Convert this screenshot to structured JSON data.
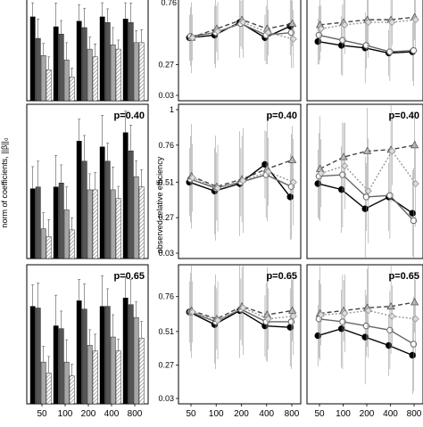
{
  "figure": {
    "left_ylabel": "norm of coefficients, ||β||₀",
    "mid_ylabel": "observed relative efficiency",
    "top_partial_label": "0.76",
    "x_ticks": [
      "50",
      "100",
      "200",
      "400",
      "800"
    ]
  },
  "colors": {
    "black": "#000000",
    "dark_gray": "#555555",
    "light_gray": "#a8a8a8",
    "hatch": "#777777",
    "axis": "#000000",
    "errorbar": "#555555"
  },
  "chart_data": [
    {
      "type": "bar",
      "panel": "bar-row1",
      "categories": [
        "50",
        "100",
        "200",
        "400",
        "800"
      ],
      "series": [
        {
          "values": [
            1.95,
            1.72,
            1.85,
            1.95,
            1.9
          ]
        },
        {
          "values": [
            1.45,
            1.55,
            1.7,
            1.82,
            1.82
          ]
        },
        {
          "values": [
            1.05,
            0.95,
            1.2,
            1.3,
            1.35
          ]
        },
        {
          "values": [
            0.72,
            0.55,
            1.02,
            1.2,
            1.35
          ]
        }
      ],
      "ylim": [
        0,
        2.3
      ]
    },
    {
      "type": "bar",
      "panel": "bar-row2",
      "annotation": "p=0.40",
      "categories": [
        "50",
        "100",
        "200",
        "400",
        "800"
      ],
      "series": [
        {
          "values": [
            1.22,
            1.25,
            2.05,
            1.95,
            2.2
          ]
        },
        {
          "values": [
            1.25,
            1.32,
            1.7,
            1.7,
            1.88
          ]
        },
        {
          "values": [
            0.52,
            0.85,
            1.2,
            1.2,
            1.43
          ]
        },
        {
          "values": [
            0.38,
            0.5,
            1.2,
            1.05,
            1.25
          ]
        }
      ],
      "ylim": [
        0,
        2.6
      ]
    },
    {
      "type": "bar",
      "panel": "bar-row3",
      "annotation": "p=0.65",
      "categories": [
        "50",
        "100",
        "200",
        "400",
        "800"
      ],
      "series": [
        {
          "values": [
            1.75,
            1.4,
            1.85,
            1.75,
            1.9
          ]
        },
        {
          "values": [
            1.72,
            1.35,
            1.7,
            1.75,
            1.78
          ]
        },
        {
          "values": [
            0.75,
            0.75,
            1.05,
            1.2,
            1.55
          ]
        },
        {
          "values": [
            0.55,
            0.5,
            0.95,
            0.95,
            1.18
          ]
        }
      ],
      "ylim": [
        0,
        2.4
      ]
    },
    {
      "type": "line",
      "panel": "eff-col1-row1",
      "x": [
        "50",
        "100",
        "200",
        "400",
        "800"
      ],
      "yticks": [
        "0.27",
        "0.03"
      ],
      "series": [
        {
          "marker": "circle-filled",
          "values": [
            0.48,
            0.5,
            0.6,
            0.48,
            0.57
          ]
        },
        {
          "marker": "circle-open",
          "values": [
            0.49,
            0.52,
            0.59,
            0.5,
            0.52
          ]
        },
        {
          "marker": "triangle",
          "values": [
            0.48,
            0.55,
            0.62,
            0.55,
            0.59
          ]
        },
        {
          "marker": "diamond",
          "values": [
            0.48,
            0.53,
            0.6,
            0.52,
            0.47
          ]
        }
      ],
      "ylim": [
        0.03,
        0.76
      ]
    },
    {
      "type": "line",
      "panel": "eff-col1-row2",
      "annotation": "p=0.40",
      "x": [
        "50",
        "100",
        "200",
        "400",
        "800"
      ],
      "yticks": [
        "1",
        "0.76",
        "0.51",
        "0.27",
        "0.03"
      ],
      "series": [
        {
          "marker": "circle-filled",
          "values": [
            0.51,
            0.45,
            0.5,
            0.63,
            0.41
          ]
        },
        {
          "marker": "circle-open",
          "values": [
            0.53,
            0.47,
            0.51,
            0.56,
            0.48
          ]
        },
        {
          "marker": "triangle",
          "values": [
            0.55,
            0.48,
            0.53,
            0.6,
            0.66
          ]
        },
        {
          "marker": "diamond",
          "values": [
            0.54,
            0.47,
            0.52,
            0.58,
            0.51
          ]
        }
      ],
      "ylim": [
        0.03,
        1
      ]
    },
    {
      "type": "line",
      "panel": "eff-col1-row3",
      "annotation": "p=0.65",
      "x": [
        "50",
        "100",
        "200",
        "400",
        "800"
      ],
      "yticks": [
        "0.76",
        "0.51",
        "0.27",
        "0.03"
      ],
      "series": [
        {
          "marker": "circle-filled",
          "values": [
            0.65,
            0.56,
            0.66,
            0.55,
            0.54
          ]
        },
        {
          "marker": "circle-open",
          "values": [
            0.65,
            0.58,
            0.67,
            0.58,
            0.58
          ]
        },
        {
          "marker": "triangle",
          "values": [
            0.66,
            0.6,
            0.69,
            0.63,
            0.66
          ]
        },
        {
          "marker": "diamond",
          "values": [
            0.65,
            0.59,
            0.68,
            0.6,
            0.62
          ]
        }
      ],
      "ylim": [
        0.03,
        0.95
      ]
    },
    {
      "type": "line",
      "panel": "eff-col2-row1",
      "x": [
        "50",
        "100",
        "200",
        "400",
        "800"
      ],
      "series": [
        {
          "marker": "circle-filled",
          "values": [
            0.45,
            0.42,
            0.4,
            0.36,
            0.37
          ]
        },
        {
          "marker": "circle-open",
          "values": [
            0.5,
            0.46,
            0.42,
            0.37,
            0.38
          ]
        },
        {
          "marker": "triangle",
          "values": [
            0.58,
            0.6,
            0.62,
            0.62,
            0.64
          ]
        },
        {
          "marker": "diamond",
          "values": [
            0.55,
            0.58,
            0.6,
            0.6,
            0.62
          ]
        }
      ],
      "ylim": [
        0.03,
        0.76
      ]
    },
    {
      "type": "line",
      "panel": "eff-col2-row2",
      "annotation": "p=0.40",
      "x": [
        "50",
        "100",
        "200",
        "400",
        "800"
      ],
      "series": [
        {
          "marker": "circle-filled",
          "values": [
            0.5,
            0.46,
            0.33,
            0.41,
            0.3
          ]
        },
        {
          "marker": "circle-open",
          "values": [
            0.55,
            0.56,
            0.41,
            0.42,
            0.25
          ]
        },
        {
          "marker": "triangle",
          "values": [
            0.6,
            0.68,
            0.72,
            0.73,
            0.76
          ]
        },
        {
          "marker": "diamond",
          "values": [
            0.57,
            0.62,
            0.45,
            0.72,
            0.5
          ]
        }
      ],
      "ylim": [
        0.03,
        1
      ]
    },
    {
      "type": "line",
      "panel": "eff-col2-row3",
      "annotation": "p=0.65",
      "x": [
        "50",
        "100",
        "200",
        "400",
        "800"
      ],
      "series": [
        {
          "marker": "circle-filled",
          "values": [
            0.48,
            0.53,
            0.47,
            0.41,
            0.34
          ]
        },
        {
          "marker": "circle-open",
          "values": [
            0.6,
            0.58,
            0.55,
            0.52,
            0.42
          ]
        },
        {
          "marker": "triangle",
          "values": [
            0.64,
            0.66,
            0.68,
            0.69,
            0.72
          ]
        },
        {
          "marker": "diamond",
          "values": [
            0.63,
            0.64,
            0.66,
            0.62,
            0.6
          ]
        }
      ],
      "ylim": [
        0.03,
        0.95
      ]
    }
  ]
}
